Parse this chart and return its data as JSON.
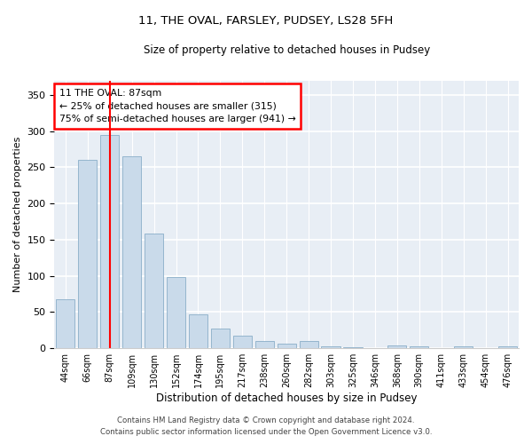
{
  "title1": "11, THE OVAL, FARSLEY, PUDSEY, LS28 5FH",
  "title2": "Size of property relative to detached houses in Pudsey",
  "xlabel": "Distribution of detached houses by size in Pudsey",
  "ylabel": "Number of detached properties",
  "footer1": "Contains HM Land Registry data © Crown copyright and database right 2024.",
  "footer2": "Contains public sector information licensed under the Open Government Licence v3.0.",
  "bar_color": "#c9daea",
  "bar_edge_color": "#8aaec8",
  "categories": [
    "44sqm",
    "66sqm",
    "87sqm",
    "109sqm",
    "130sqm",
    "152sqm",
    "174sqm",
    "195sqm",
    "217sqm",
    "238sqm",
    "260sqm",
    "282sqm",
    "303sqm",
    "325sqm",
    "346sqm",
    "368sqm",
    "390sqm",
    "411sqm",
    "433sqm",
    "454sqm",
    "476sqm"
  ],
  "values": [
    68,
    260,
    295,
    265,
    158,
    98,
    47,
    27,
    18,
    10,
    6,
    10,
    3,
    1,
    0,
    4,
    3,
    0,
    3,
    0,
    3
  ],
  "red_line_index": 2,
  "annotation_line1": "11 THE OVAL: 87sqm",
  "annotation_line2": "← 25% of detached houses are smaller (315)",
  "annotation_line3": "75% of semi-detached houses are larger (941) →",
  "ylim": [
    0,
    370
  ],
  "yticks": [
    0,
    50,
    100,
    150,
    200,
    250,
    300,
    350
  ],
  "plot_bg_color": "#e8eef5"
}
